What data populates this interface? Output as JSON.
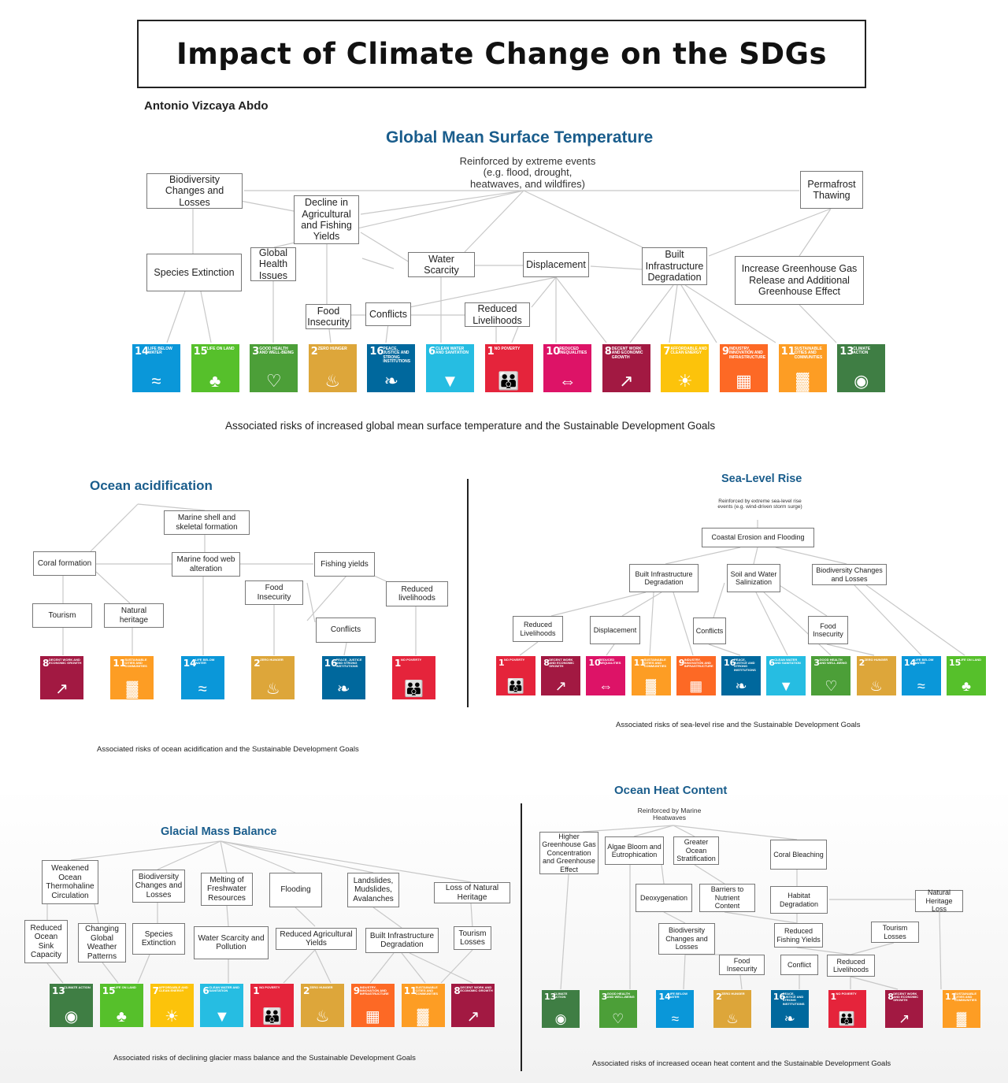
{
  "title": "Impact of Climate Change on the SDGs",
  "author": "Antonio Vizcaya Abdo",
  "sdg_colors": {
    "1": "#e5243b",
    "2": "#dda63a",
    "3": "#4c9f38",
    "4": "#c5192d",
    "6": "#26bde2",
    "7": "#fcc30b",
    "8": "#a21942",
    "9": "#fd6925",
    "10": "#dd1367",
    "11": "#fd9d24",
    "13": "#3f7e44",
    "14": "#0a97d9",
    "15": "#56c02b",
    "16": "#00689d"
  },
  "sdg_labels": {
    "1": "No poverty",
    "2": "Zero hunger",
    "3": "Good health and well-being",
    "6": "Clean water and sanitation",
    "7": "Affordable and clean energy",
    "8": "Decent work and economic growth",
    "9": "Industry, innovation and infrastructure",
    "10": "Reduced inequalities",
    "11": "Sustainable cities and communities",
    "13": "Climate action",
    "14": "Life below water",
    "15": "Life on land",
    "16": "Peace, justice and strong institutions"
  },
  "sdg_icons": {
    "1": "family-icon",
    "2": "bowl-icon",
    "3": "heartbeat-icon",
    "6": "water-drop-icon",
    "7": "sun-icon",
    "8": "growth-chart-icon",
    "9": "cubes-icon",
    "10": "arrows-icon",
    "11": "buildings-icon",
    "13": "eye-globe-icon",
    "14": "fish-icon",
    "15": "tree-icon",
    "16": "dove-icon"
  },
  "sections": {
    "gmst": {
      "title": "Global Mean Surface Temperature",
      "note": "Reinforced by extreme events (e.g. flood, drought, heatwaves, and wildfires)",
      "caption": "Associated risks of increased global mean surface temperature and the Sustainable Development Goals",
      "boxes": {
        "biodiversity": "Biodiversity Changes and Losses",
        "agri": "Decline in Agricultural and Fishing Yields",
        "permafrost": "Permafrost Thawing",
        "species": "Species Extinction",
        "health": "Global Health Issues",
        "water": "Water Scarcity",
        "displacement": "Displacement",
        "infra": "Built Infrastructure Degradation",
        "ghg": "Increase Greenhouse Gas Release and Additional Greenhouse Effect",
        "food": "Food Insecurity",
        "conflicts": "Conflicts",
        "livelihoods": "Reduced Livelihoods"
      },
      "sdgs": [
        "14",
        "15",
        "3",
        "2",
        "16",
        "6",
        "1",
        "10",
        "8",
        "7",
        "9",
        "11",
        "13"
      ]
    },
    "ocean_acid": {
      "title": "Ocean acidification",
      "caption": "Associated risks of ocean acidification and the Sustainable Development Goals",
      "boxes": {
        "shell": "Marine shell and skeletal formation",
        "coral": "Coral formation",
        "foodweb": "Marine food web alteration",
        "fishing": "Fishing yields",
        "food": "Food Insecurity",
        "livelihoods": "Reduced livelihoods",
        "tourism": "Tourism",
        "heritage": "Natural heritage",
        "conflicts": "Conflicts"
      },
      "sdgs": [
        "8",
        "11",
        "14",
        "2",
        "16",
        "1"
      ]
    },
    "sea_level": {
      "title": "Sea-Level Rise",
      "note": "Reinforced by extreme sea-level rise events (e.g. wind-driven storm surge)",
      "caption": "Associated risks of sea-level rise and the Sustainable Development Goals",
      "boxes": {
        "coastal": "Coastal Erosion and Flooding",
        "infra": "Built Infrastructure Degradation",
        "soil": "Soil and Water Salinization",
        "biodiversity": "Biodiversity Changes and Losses",
        "livelihoods": "Reduced Livelihoods",
        "displacement": "Displacement",
        "conflicts": "Conflicts",
        "food": "Food Insecurity"
      },
      "sdgs": [
        "1",
        "8",
        "10",
        "11",
        "9",
        "16",
        "6",
        "3",
        "2",
        "14",
        "15"
      ]
    },
    "glacial": {
      "title": "Glacial Mass Balance",
      "caption": "Associated risks of declining glacier mass balance and the Sustainable Development Goals",
      "boxes": {
        "thermohaline": "Weakened Ocean Thermohaline Circulation",
        "biodiversity": "Biodiversity Changes and Losses",
        "melting": "Melting of Freshwater Resources",
        "flooding": "Flooding",
        "landslides": "Landslides, Mudslides, Avalanches",
        "heritage": "Loss of Natural Heritage",
        "sink": "Reduced Ocean Sink Capacity",
        "weather": "Changing Global Weather Patterns",
        "species": "Species Extinction",
        "water": "Water Scarcity and Pollution",
        "agri": "Reduced Agricultural Yields",
        "infra": "Built Infrastructure Degradation",
        "tourism": "Tourism Losses"
      },
      "sdgs": [
        "13",
        "15",
        "7",
        "6",
        "1",
        "2",
        "9",
        "11",
        "8"
      ]
    },
    "ocean_heat": {
      "title": "Ocean Heat Content",
      "note": "Reinforced by Marine Heatwaves",
      "caption": "Associated risks of increased ocean heat content and the Sustainable Development Goals",
      "boxes": {
        "ghg": "Higher Greenhouse Gas Concentration and Greenhouse Effect",
        "algae": "Algae Bloom and Eutrophication",
        "strat": "Greater Ocean Stratification",
        "coral": "Coral Bleaching",
        "deoxy": "Deoxygenation",
        "barriers": "Barriers to Nutrient Content",
        "habitat": "Habitat Degradation",
        "heritage": "Natural Heritage Loss",
        "biodiversity": "Biodiversity Changes and Losses",
        "fishing": "Reduced Fishing Yields",
        "tourism": "Tourism Losses",
        "food": "Food Insecurity",
        "conflict": "Conflict",
        "livelihoods": "Reduced Livelihoods"
      },
      "sdgs": [
        "13",
        "3",
        "14",
        "2",
        "16",
        "1",
        "8",
        "11"
      ]
    }
  }
}
